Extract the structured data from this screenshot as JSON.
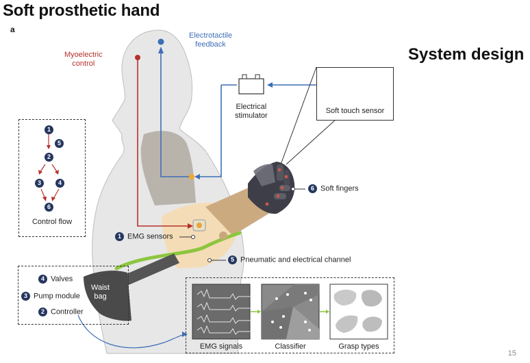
{
  "slide": {
    "title": "Soft prosthetic hand",
    "panel_letter": "a",
    "section_title": "System design",
    "page_number": "15"
  },
  "figure": {
    "myoelectric_label": "Myoelectric\ncontrol",
    "electrotactile_label": "Electrotactile\nfeedback",
    "stimulator_label": "Electrical\nstimulator",
    "touch_sensor_label": "Soft touch sensor",
    "soft_fingers": {
      "num": "6",
      "label": "Soft fingers"
    },
    "emg_sensors": {
      "num": "1",
      "label": "EMG sensors"
    },
    "channel": {
      "num": "5",
      "label": "Pneumatic and electrical channel"
    },
    "waist_bag_label": "Waist\nbag",
    "control_flow": {
      "label": "Control flow",
      "nodes": [
        "1",
        "5",
        "2",
        "3",
        "4",
        "6"
      ]
    },
    "bag_contents": [
      {
        "num": "4",
        "label": "Valves"
      },
      {
        "num": "3",
        "label": "Pump module"
      },
      {
        "num": "2",
        "label": "Controller"
      }
    ],
    "pipeline": {
      "steps": [
        "EMG signals",
        "Classifier",
        "Grasp types"
      ]
    }
  },
  "colors": {
    "red": "#b5312a",
    "blue": "#3d6fb6",
    "badge": "#24365f",
    "body": "#e7e7e7",
    "forearm": "#c9a77c",
    "green": "#8cc63f"
  }
}
